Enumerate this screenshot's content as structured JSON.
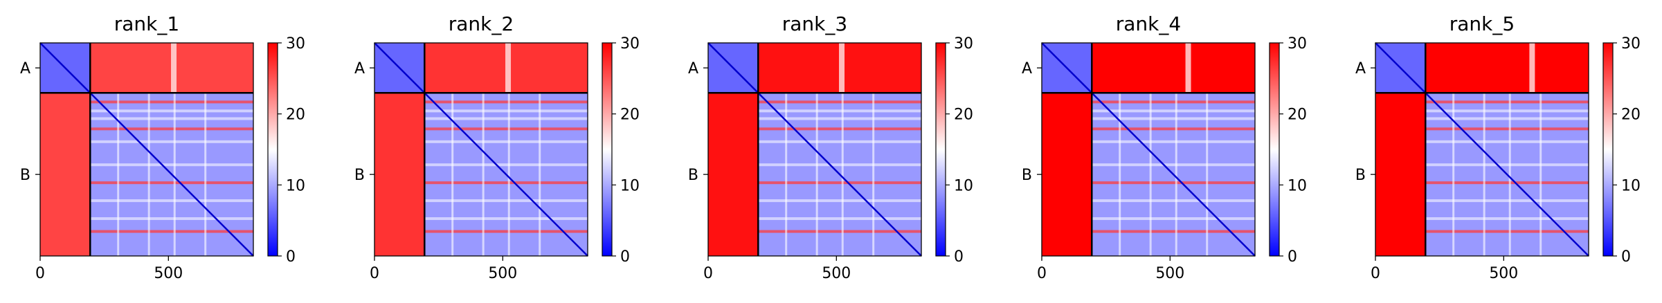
{
  "chart_data": [
    {
      "type": "heatmap",
      "title": "rank_1",
      "chain_labels": [
        "A",
        "B"
      ],
      "chain_boundary": 195,
      "x_range": [
        0,
        831
      ],
      "xticks": [
        0,
        500
      ],
      "colorbar": {
        "range": [
          0,
          30
        ],
        "ticks": [
          0,
          10,
          20,
          30
        ],
        "colormap": [
          "#0000ff",
          "#ffffff",
          "#ff0000"
        ]
      },
      "values": {
        "aa_block": 6,
        "cross_block": 26,
        "bb_block_mean": 9,
        "cross_block_stripe_at": 510
      }
    },
    {
      "type": "heatmap",
      "title": "rank_2",
      "chain_labels": [
        "A",
        "B"
      ],
      "chain_boundary": 195,
      "x_range": [
        0,
        831
      ],
      "xticks": [
        0,
        500
      ],
      "colorbar": {
        "range": [
          0,
          30
        ],
        "ticks": [
          0,
          10,
          20,
          30
        ],
        "colormap": [
          "#0000ff",
          "#ffffff",
          "#ff0000"
        ]
      },
      "values": {
        "aa_block": 6,
        "cross_block": 27,
        "bb_block_mean": 9,
        "cross_block_stripe_at": 510
      }
    },
    {
      "type": "heatmap",
      "title": "rank_3",
      "chain_labels": [
        "A",
        "B"
      ],
      "chain_boundary": 195,
      "x_range": [
        0,
        831
      ],
      "xticks": [
        0,
        500
      ],
      "colorbar": {
        "range": [
          0,
          30
        ],
        "ticks": [
          0,
          10,
          20,
          30
        ],
        "colormap": [
          "#0000ff",
          "#ffffff",
          "#ff0000"
        ]
      },
      "values": {
        "aa_block": 6,
        "cross_block": 29,
        "bb_block_mean": 9,
        "cross_block_stripe_at": 510
      }
    },
    {
      "type": "heatmap",
      "title": "rank_4",
      "chain_labels": [
        "A",
        "B"
      ],
      "chain_boundary": 195,
      "x_range": [
        0,
        831
      ],
      "xticks": [
        0,
        500
      ],
      "colorbar": {
        "range": [
          0,
          30
        ],
        "ticks": [
          0,
          10,
          20,
          30
        ],
        "colormap": [
          "#0000ff",
          "#ffffff",
          "#ff0000"
        ]
      },
      "values": {
        "aa_block": 6,
        "cross_block": 30,
        "bb_block_mean": 9,
        "cross_block_stripe_at": 560
      }
    },
    {
      "type": "heatmap",
      "title": "rank_5",
      "chain_labels": [
        "A",
        "B"
      ],
      "chain_boundary": 195,
      "x_range": [
        0,
        831
      ],
      "xticks": [
        0,
        500
      ],
      "colorbar": {
        "range": [
          0,
          30
        ],
        "ticks": [
          0,
          10,
          20,
          30
        ],
        "colormap": [
          "#0000ff",
          "#ffffff",
          "#ff0000"
        ]
      },
      "values": {
        "aa_block": 6,
        "cross_block": 30,
        "bb_block_mean": 9,
        "cross_block_stripe_at": 600
      }
    }
  ]
}
